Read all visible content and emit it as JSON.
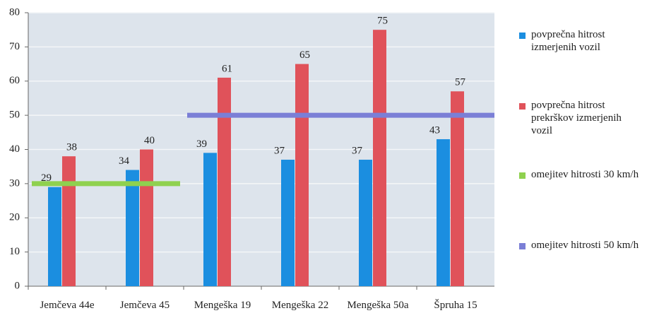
{
  "chart_data": {
    "type": "bar",
    "categories": [
      "Jemčeva 44e",
      "Jemčeva 45",
      "Mengeška 19",
      "Mengeška 22",
      "Mengeška 50a",
      "Špruha 15"
    ],
    "series": [
      {
        "name": "povprečna hitrost izmerjenih vozil",
        "color": "#1b8ee0",
        "type": "bar",
        "values": [
          29,
          34,
          39,
          37,
          37,
          43
        ]
      },
      {
        "name": "povprečna hitrost prekrškov izmerjenih vozil",
        "color": "#e0525a",
        "type": "bar",
        "values": [
          38,
          40,
          61,
          65,
          75,
          57
        ]
      },
      {
        "name": "omejitev hitrosti 30 km/h",
        "color": "#8fd14f",
        "type": "line",
        "values": [
          30,
          30,
          null,
          null,
          null,
          null
        ]
      },
      {
        "name": "omejitev hitrosti 50 km/h",
        "color": "#7b7fd6",
        "type": "line",
        "values": [
          null,
          null,
          50,
          50,
          50,
          50
        ]
      }
    ],
    "ylim": [
      0,
      80
    ],
    "yticks": [
      0,
      10,
      20,
      30,
      40,
      50,
      60,
      70,
      80
    ],
    "grid": true,
    "legend": "right"
  }
}
